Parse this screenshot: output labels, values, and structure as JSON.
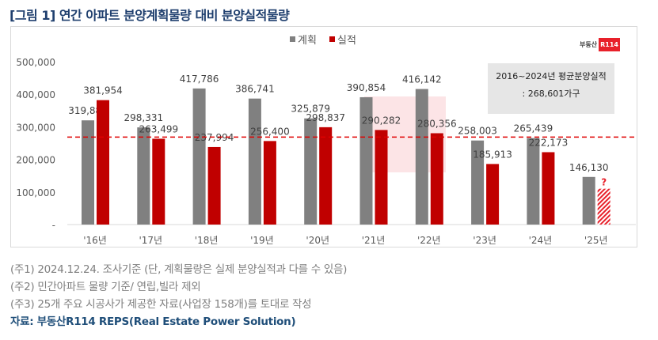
{
  "title": "[그림 1] 연간 아파트 분양계획물량 대비 분양실적물량",
  "logo": {
    "text": "부동산",
    "badge": "R114"
  },
  "average_box": {
    "line1": "2016~2024년 평균분양실적",
    "line2": ": 268,601가구"
  },
  "chart_data": {
    "type": "bar",
    "categories": [
      "'16년",
      "'17년",
      "'18년",
      "'19년",
      "'20년",
      "'21년",
      "'22년",
      "'23년",
      "'24년",
      "'25년"
    ],
    "series": [
      {
        "name": "계획",
        "color": "#808080",
        "values": [
          319889,
          298331,
          417786,
          386741,
          325879,
          390854,
          416142,
          258003,
          265439,
          146130
        ],
        "labels": [
          "319,889",
          "298,331",
          "417,786",
          "386,741",
          "325,879",
          "390,854",
          "416,142",
          "258,003",
          "265,439",
          "146,130"
        ]
      },
      {
        "name": "실적",
        "color": "#c00000",
        "values": [
          381954,
          263499,
          237994,
          256400,
          298837,
          290282,
          280356,
          185913,
          222173,
          null
        ],
        "labels": [
          "381,954",
          "263,499",
          "237,994",
          "256,400",
          "298,837",
          "290,282",
          "280,356",
          "185,913",
          "222,173",
          "?"
        ]
      }
    ],
    "reference_line": {
      "value": 268601,
      "style": "dashed",
      "color": "#e00000"
    },
    "yticks": [
      "-",
      "100,000",
      "200,000",
      "300,000",
      "400,000",
      "500,000"
    ],
    "ylim": [
      0,
      500000
    ],
    "legend": "top-center",
    "grid": false
  },
  "notes": [
    "(주1) 2024.12.24. 조사기준 (단, 계획물량은 실제 분양실적과 다를 수 있음)",
    "(주2) 민간아파트 물량 기준/ 연립,빌라 제외",
    "(주3) 25개 주요 시공사가 제공한 자료(사업장 158개)를 토대로 작성"
  ],
  "source": "자료: 부동산R114 REPS(Real Estate Power Solution)"
}
